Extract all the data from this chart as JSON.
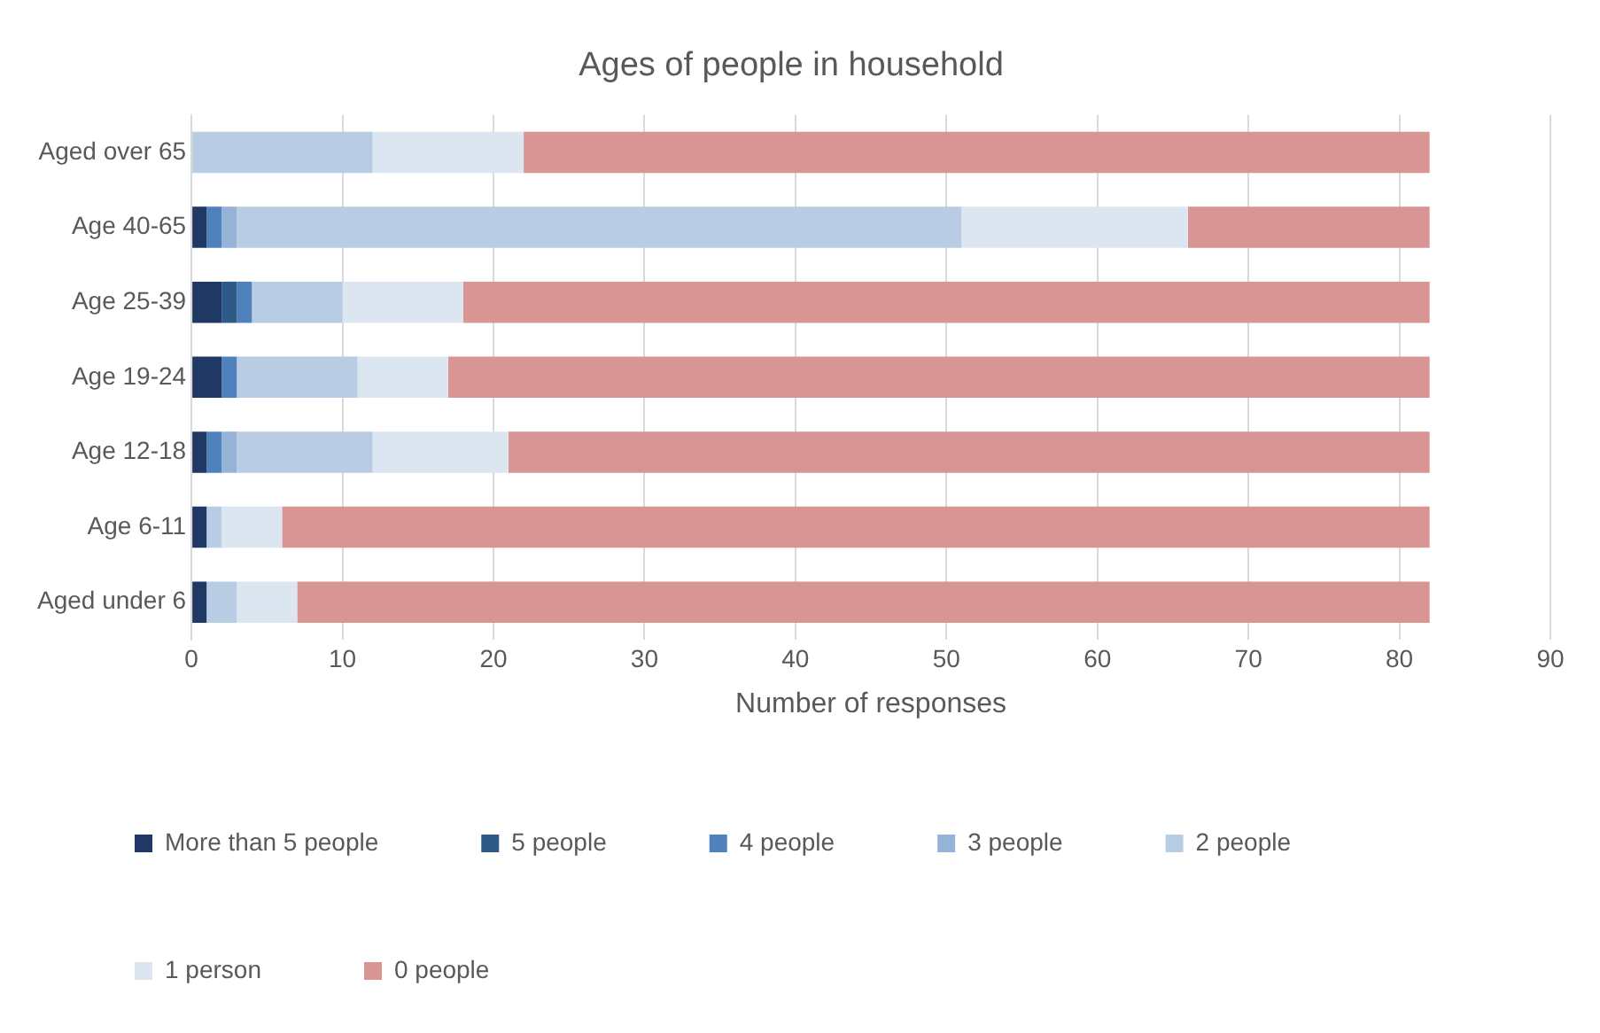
{
  "chart_data": {
    "type": "bar",
    "orientation": "horizontal",
    "stacked": true,
    "title": "Ages of people in household",
    "xlabel": "Number of responses",
    "categories": [
      "Aged over 65",
      "Age 40-65",
      "Age 25-39",
      "Age 19-24",
      "Age 12-18",
      "Age 6-11",
      "Aged under 6"
    ],
    "series": [
      {
        "name": "More than 5 people",
        "color": "#1f3864",
        "values": [
          0,
          1,
          2,
          2,
          1,
          1,
          1
        ]
      },
      {
        "name": "5 people",
        "color": "#2e5a88",
        "values": [
          0,
          0,
          1,
          0,
          0,
          0,
          0
        ]
      },
      {
        "name": "4 people",
        "color": "#4f81bd",
        "values": [
          0,
          1,
          1,
          1,
          1,
          0,
          0
        ]
      },
      {
        "name": "3 people",
        "color": "#95b3d7",
        "values": [
          0,
          1,
          0,
          0,
          1,
          0,
          0
        ]
      },
      {
        "name": "2 people",
        "color": "#b8cce4",
        "values": [
          12,
          48,
          6,
          8,
          9,
          1,
          2
        ]
      },
      {
        "name": "1 person",
        "color": "#dce6f1",
        "values": [
          10,
          15,
          8,
          6,
          9,
          4,
          4
        ]
      },
      {
        "name": "0 people",
        "color": "#d99594",
        "values": [
          60,
          16,
          64,
          65,
          61,
          76,
          75
        ]
      }
    ],
    "xlim": [
      0,
      90
    ],
    "xticks": [
      0,
      10,
      20,
      30,
      40,
      50,
      60,
      70,
      80,
      90
    ],
    "grid": "x",
    "legend": "bottom"
  }
}
